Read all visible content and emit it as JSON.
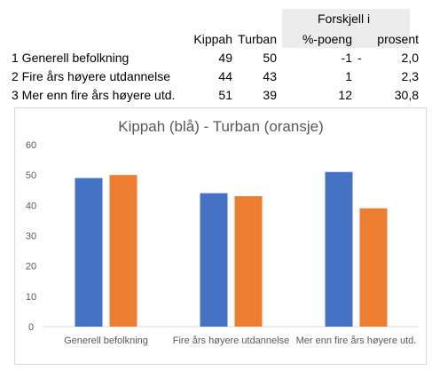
{
  "table": {
    "group_header": "Forskjell i",
    "col_headers": [
      "Kippah",
      "Turban",
      "%-poeng",
      "prosent"
    ],
    "rows": [
      {
        "label": "1 Generell befolkning",
        "kippah": "49",
        "turban": "50",
        "diff_pp": "-1",
        "dash": "-",
        "diff_pct": "2,0"
      },
      {
        "label": "2 Fire års høyere utdannelse",
        "kippah": "44",
        "turban": "43",
        "diff_pp": "1",
        "dash": "",
        "diff_pct": "2,3"
      },
      {
        "label": "3 Mer enn fire års høyere utd.",
        "kippah": "51",
        "turban": "39",
        "diff_pp": "12",
        "dash": "",
        "diff_pct": "30,8"
      }
    ]
  },
  "chart_data": {
    "type": "bar",
    "title": "Kippah (blå) - Turban (oransje)",
    "categories": [
      "Generell befolkning",
      "Fire års høyere utdannelse",
      "Mer enn fire års høyere utd."
    ],
    "series": [
      {
        "values": [
          49,
          44,
          51
        ],
        "color": "#4472c4"
      },
      {
        "values": [
          50,
          43,
          39
        ],
        "color": "#ed7d31"
      }
    ],
    "ylim": [
      0,
      60
    ],
    "yticks": [
      0,
      10,
      20,
      30,
      40,
      50,
      60
    ],
    "grid": false,
    "legend": "none"
  }
}
